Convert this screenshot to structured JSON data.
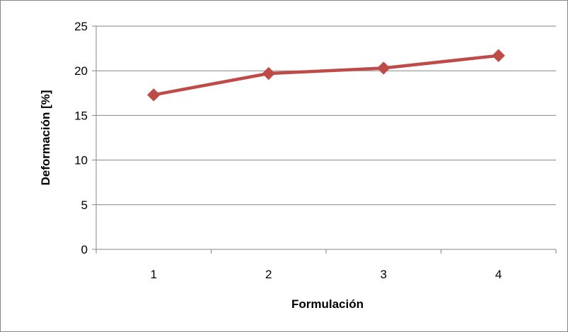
{
  "chart_data": {
    "type": "line",
    "title": "",
    "xlabel": "Formulación",
    "ylabel": "Deformación [%]",
    "categories": [
      "1",
      "2",
      "3",
      "4"
    ],
    "series": [
      {
        "values": [
          17.3,
          19.7,
          20.3,
          21.7
        ],
        "color": "#be4b48",
        "marker": "diamond"
      }
    ],
    "ylim": [
      0,
      25
    ],
    "yticks": [
      0,
      5,
      10,
      15,
      20,
      25
    ],
    "grid": true,
    "legend": "none"
  }
}
